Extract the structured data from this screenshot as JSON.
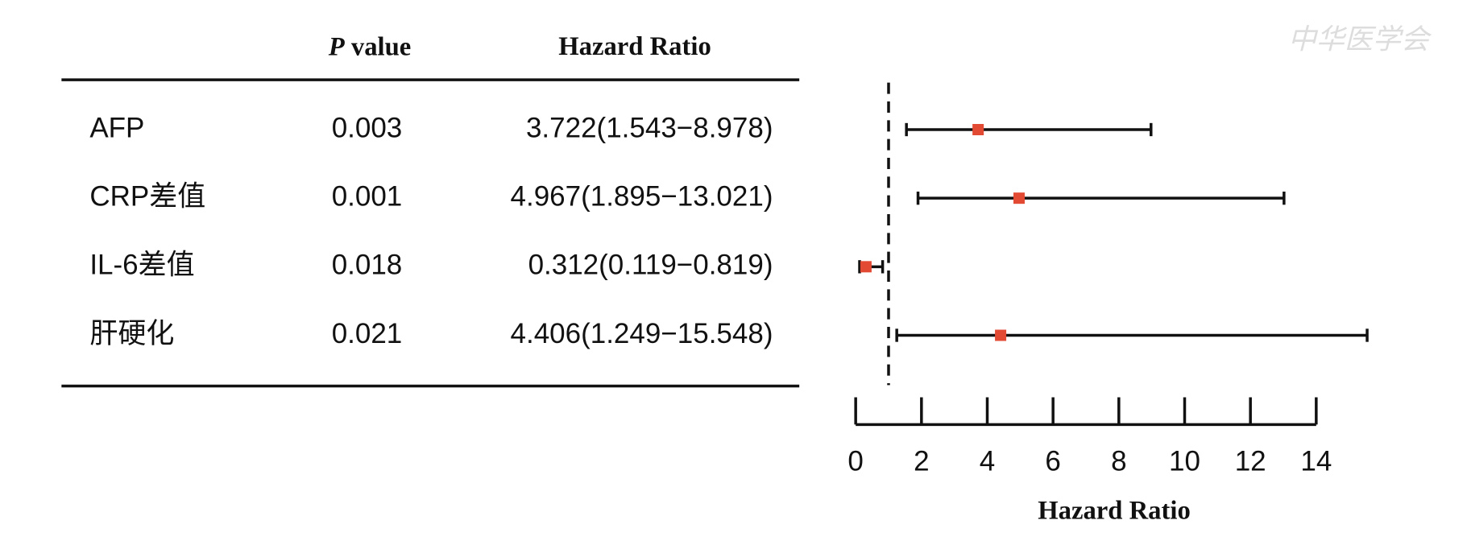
{
  "chart_data": {
    "type": "forest",
    "watermark": "中华医学会",
    "header_pvalue": [
      "P",
      "value"
    ],
    "header_hr": "Hazard Ratio",
    "categories": [
      "AFP",
      "CRP差值",
      "IL-6差值",
      "肝硬化"
    ],
    "p_values": [
      0.003,
      0.001,
      0.018,
      0.021
    ],
    "values": [
      3.722,
      4.967,
      0.312,
      4.406
    ],
    "value_labels": [
      "3.722(1.543−8.978)",
      "4.967(1.895−13.021)",
      "0.312(0.119−0.819)",
      "4.406(1.249−15.548)"
    ],
    "lower": [
      1.543,
      1.895,
      0.119,
      1.249
    ],
    "upper": [
      8.978,
      13.021,
      0.819,
      15.548
    ],
    "color": "#e34a33",
    "reference_line": 1,
    "xlim": [
      0,
      14
    ],
    "xticks": [
      0,
      2,
      4,
      6,
      8,
      10,
      12,
      14
    ],
    "xlabel": "Hazard Ratio"
  }
}
